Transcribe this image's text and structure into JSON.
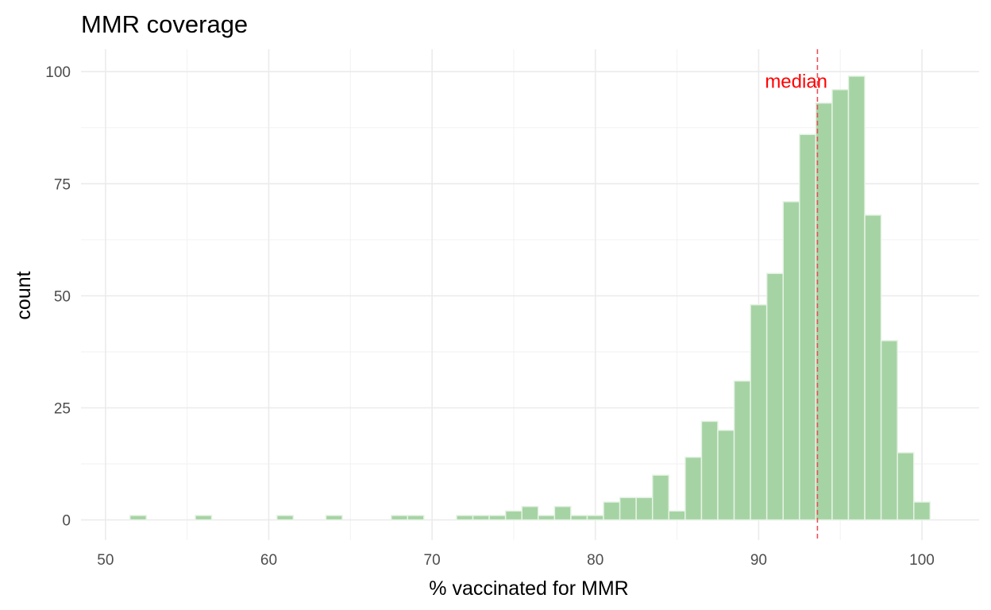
{
  "chart_data": {
    "type": "histogram",
    "title": "MMR coverage",
    "xlabel": "% vaccinated for MMR",
    "ylabel": "count",
    "xlim": [
      48.5,
      103.5
    ],
    "ylim": [
      -4.5,
      105
    ],
    "x_ticks": [
      50,
      60,
      70,
      80,
      90,
      100
    ],
    "y_ticks": [
      0,
      25,
      50,
      75,
      100
    ],
    "grid": true,
    "bin_width": 1,
    "bars": [
      {
        "x_start": 51.5,
        "count": 1
      },
      {
        "x_start": 55.5,
        "count": 1
      },
      {
        "x_start": 60.5,
        "count": 1
      },
      {
        "x_start": 63.5,
        "count": 1
      },
      {
        "x_start": 67.5,
        "count": 1
      },
      {
        "x_start": 68.5,
        "count": 1
      },
      {
        "x_start": 71.5,
        "count": 1
      },
      {
        "x_start": 72.5,
        "count": 1
      },
      {
        "x_start": 73.5,
        "count": 1
      },
      {
        "x_start": 74.5,
        "count": 2
      },
      {
        "x_start": 75.5,
        "count": 3
      },
      {
        "x_start": 76.5,
        "count": 1
      },
      {
        "x_start": 77.5,
        "count": 3
      },
      {
        "x_start": 78.5,
        "count": 1
      },
      {
        "x_start": 79.5,
        "count": 1
      },
      {
        "x_start": 80.5,
        "count": 4
      },
      {
        "x_start": 81.5,
        "count": 5
      },
      {
        "x_start": 82.5,
        "count": 5
      },
      {
        "x_start": 83.5,
        "count": 10
      },
      {
        "x_start": 84.5,
        "count": 2
      },
      {
        "x_start": 85.5,
        "count": 14
      },
      {
        "x_start": 86.5,
        "count": 22
      },
      {
        "x_start": 87.5,
        "count": 20
      },
      {
        "x_start": 88.5,
        "count": 31
      },
      {
        "x_start": 89.5,
        "count": 48
      },
      {
        "x_start": 90.5,
        "count": 55
      },
      {
        "x_start": 91.5,
        "count": 71
      },
      {
        "x_start": 92.5,
        "count": 86
      },
      {
        "x_start": 93.5,
        "count": 93
      },
      {
        "x_start": 94.5,
        "count": 96
      },
      {
        "x_start": 95.5,
        "count": 99
      },
      {
        "x_start": 96.5,
        "count": 68
      },
      {
        "x_start": 97.5,
        "count": 40
      },
      {
        "x_start": 98.5,
        "count": 15
      },
      {
        "x_start": 99.5,
        "count": 4
      }
    ],
    "median": {
      "value": 93.6,
      "label": "median",
      "color": "#ff0000",
      "line_color": "#e8505b"
    },
    "bar_fill": "#a6d3a4",
    "bar_stroke": "#e6f3e5"
  }
}
